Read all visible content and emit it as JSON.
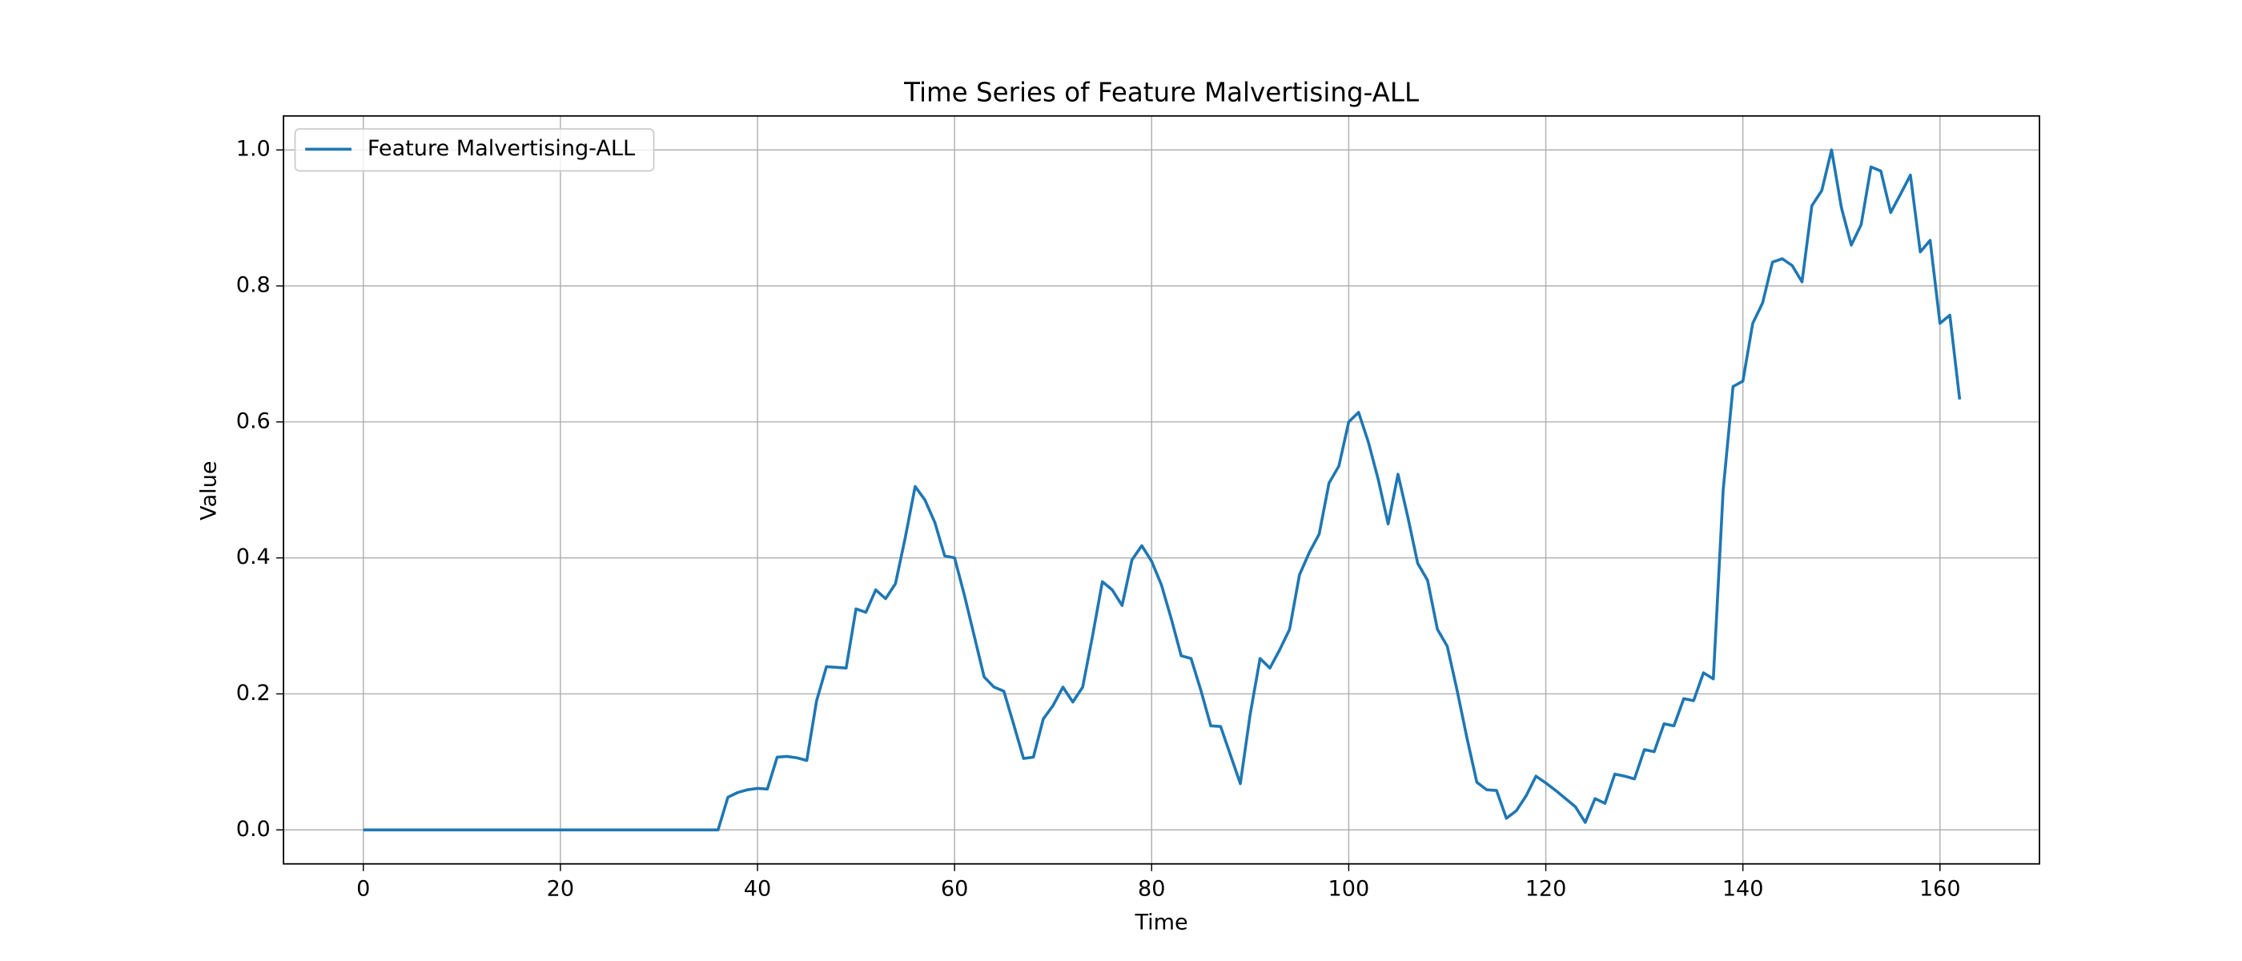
{
  "chart_data": {
    "type": "line",
    "title": "Time Series of Feature Malvertising-ALL",
    "x_label": "Time",
    "y_label": "Value",
    "x": [
      0,
      1,
      2,
      3,
      4,
      5,
      6,
      7,
      8,
      9,
      10,
      11,
      12,
      13,
      14,
      15,
      16,
      17,
      18,
      19,
      20,
      21,
      22,
      23,
      24,
      25,
      26,
      27,
      28,
      29,
      30,
      31,
      32,
      33,
      34,
      35,
      36,
      37,
      38,
      39,
      40,
      41,
      42,
      43,
      44,
      45,
      46,
      47,
      48,
      49,
      50,
      51,
      52,
      53,
      54,
      55,
      56,
      57,
      58,
      59,
      60,
      61,
      62,
      63,
      64,
      65,
      66,
      67,
      68,
      69,
      70,
      71,
      72,
      73,
      74,
      75,
      76,
      77,
      78,
      79,
      80,
      81,
      82,
      83,
      84,
      85,
      86,
      87,
      88,
      89,
      90,
      91,
      92,
      93,
      94,
      95,
      96,
      97,
      98,
      99,
      100,
      101,
      102,
      103,
      104,
      105,
      106,
      107,
      108,
      109,
      110,
      111,
      112,
      113,
      114,
      115,
      116,
      117,
      118,
      119,
      120,
      121,
      122,
      123,
      124,
      125,
      126,
      127,
      128,
      129,
      130,
      131,
      132,
      133,
      134,
      135,
      136,
      137,
      138,
      139,
      140,
      141,
      142,
      143,
      144,
      145,
      146,
      147,
      148,
      149,
      150,
      151,
      152,
      153,
      154,
      155,
      156,
      157,
      158,
      159,
      160,
      161,
      162
    ],
    "series": [
      {
        "name": "Feature Malvertising-ALL",
        "color": "#1f77b4",
        "values": [
          0,
          0,
          0,
          0,
          0,
          0,
          0,
          0,
          0,
          0,
          0,
          0,
          0,
          0,
          0,
          0,
          0,
          0,
          0,
          0,
          0,
          0,
          0,
          0,
          0,
          0,
          0,
          0,
          0,
          0,
          0,
          0,
          0,
          0,
          0,
          0,
          0,
          0.048,
          0.055,
          0.059,
          0.061,
          0.06,
          0.107,
          0.108,
          0.106,
          0.102,
          0.19,
          0.24,
          0.239,
          0.238,
          0.325,
          0.32,
          0.353,
          0.34,
          0.362,
          0.43,
          0.505,
          0.485,
          0.452,
          0.403,
          0.4,
          0.345,
          0.285,
          0.225,
          0.21,
          0.204,
          0.155,
          0.105,
          0.107,
          0.163,
          0.183,
          0.21,
          0.188,
          0.21,
          0.285,
          0.365,
          0.353,
          0.33,
          0.397,
          0.418,
          0.395,
          0.36,
          0.31,
          0.256,
          0.252,
          0.205,
          0.153,
          0.152,
          0.11,
          0.068,
          0.17,
          0.252,
          0.238,
          0.265,
          0.295,
          0.375,
          0.408,
          0.435,
          0.51,
          0.535,
          0.6,
          0.614,
          0.57,
          0.515,
          0.45,
          0.523,
          0.46,
          0.392,
          0.367,
          0.295,
          0.27,
          0.205,
          0.135,
          0.07,
          0.059,
          0.058,
          0.017,
          0.028,
          0.05,
          0.079,
          0.069,
          0.058,
          0.046,
          0.034,
          0.011,
          0.046,
          0.039,
          0.082,
          0.079,
          0.075,
          0.118,
          0.115,
          0.156,
          0.153,
          0.193,
          0.19,
          0.231,
          0.222,
          0.5,
          0.652,
          0.66,
          0.745,
          0.775,
          0.835,
          0.84,
          0.83,
          0.806,
          0.918,
          0.94,
          1.0,
          0.915,
          0.86,
          0.89,
          0.975,
          0.969,
          0.908,
          0.935,
          0.963,
          0.85,
          0.867,
          0.745,
          0.757,
          0.633
        ]
      }
    ],
    "xlim": [
      -8.1,
      170.1
    ],
    "xticks": [
      0,
      20,
      40,
      60,
      80,
      100,
      120,
      140,
      160
    ],
    "ylim": [
      -0.05,
      1.05
    ],
    "yticks": [
      {
        "value": 0,
        "label": "0.0"
      },
      0.2,
      0.4,
      0.6,
      0.8,
      {
        "value": 1,
        "label": "1.0"
      }
    ],
    "grid": true,
    "legend": "upper-left"
  }
}
